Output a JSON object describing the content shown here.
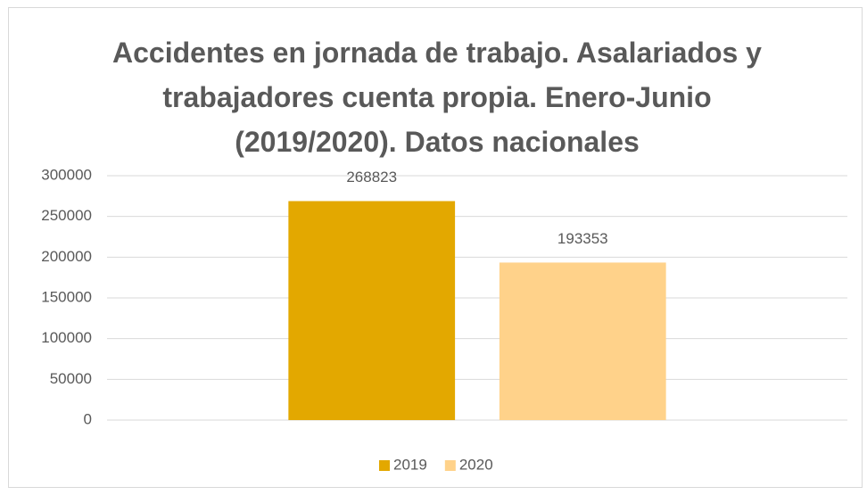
{
  "chart_data": {
    "type": "bar",
    "title": "Accidentes en jornada de trabajo. Asalariados y trabajadores cuenta propia. Enero-Junio (2019/2020). Datos nacionales",
    "categories": [
      null
    ],
    "series": [
      {
        "name": "2019",
        "color": "#e3a800",
        "values": [
          268823
        ]
      },
      {
        "name": "2020",
        "color": "#ffd28a",
        "values": [
          193353
        ]
      }
    ],
    "ylim": [
      0,
      300000
    ],
    "yticks": [
      0,
      50000,
      100000,
      150000,
      200000,
      250000,
      300000
    ],
    "grid": true,
    "legend": "bottom"
  }
}
